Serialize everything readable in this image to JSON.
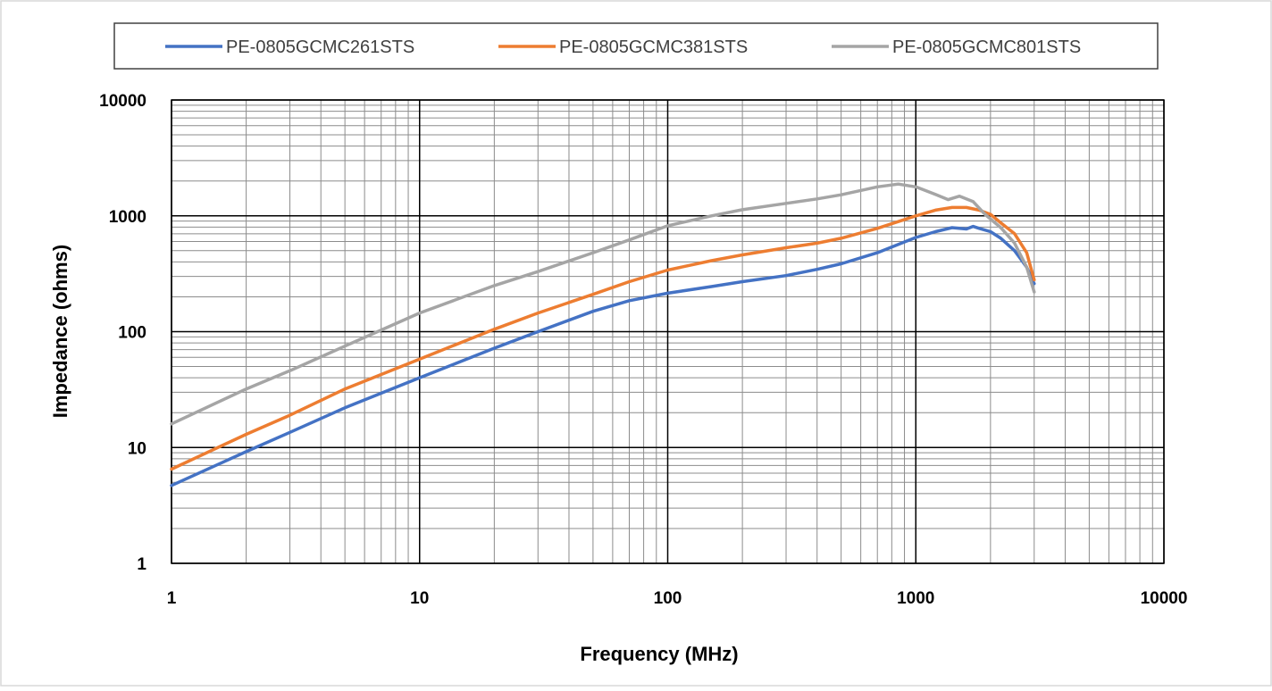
{
  "chart_data": {
    "type": "line",
    "xscale": "log",
    "yscale": "log",
    "xlim": [
      1,
      10000
    ],
    "ylim": [
      1,
      10000
    ],
    "xlabel": "Frequency (MHz)",
    "ylabel": "Impedance (ohms)",
    "x_ticks": [
      "1",
      "10",
      "100",
      "1000",
      "10000"
    ],
    "y_ticks": [
      "1",
      "10",
      "100",
      "1000",
      "10000"
    ],
    "grid": true,
    "legend_position": "top",
    "series": [
      {
        "name": "PE-0805GCMC261STS",
        "color": "#4472C4",
        "points": [
          [
            1,
            4.7
          ],
          [
            2,
            9.2
          ],
          [
            3,
            13.5
          ],
          [
            5,
            22
          ],
          [
            10,
            40
          ],
          [
            20,
            72
          ],
          [
            30,
            100
          ],
          [
            50,
            150
          ],
          [
            70,
            185
          ],
          [
            100,
            215
          ],
          [
            150,
            245
          ],
          [
            200,
            270
          ],
          [
            300,
            305
          ],
          [
            400,
            345
          ],
          [
            500,
            385
          ],
          [
            700,
            480
          ],
          [
            1000,
            650
          ],
          [
            1200,
            730
          ],
          [
            1400,
            790
          ],
          [
            1600,
            770
          ],
          [
            1700,
            810
          ],
          [
            1800,
            780
          ],
          [
            2000,
            730
          ],
          [
            2200,
            640
          ],
          [
            2500,
            500
          ],
          [
            2800,
            360
          ],
          [
            3000,
            260
          ]
        ]
      },
      {
        "name": "PE-0805GCMC381STS",
        "color": "#ED7D31",
        "points": [
          [
            1,
            6.5
          ],
          [
            2,
            13
          ],
          [
            3,
            19
          ],
          [
            5,
            32
          ],
          [
            10,
            58
          ],
          [
            20,
            105
          ],
          [
            30,
            145
          ],
          [
            50,
            210
          ],
          [
            70,
            270
          ],
          [
            100,
            340
          ],
          [
            150,
            410
          ],
          [
            200,
            460
          ],
          [
            300,
            530
          ],
          [
            400,
            580
          ],
          [
            500,
            640
          ],
          [
            700,
            780
          ],
          [
            1000,
            1000
          ],
          [
            1200,
            1120
          ],
          [
            1400,
            1180
          ],
          [
            1600,
            1180
          ],
          [
            1800,
            1120
          ],
          [
            2000,
            1030
          ],
          [
            2200,
            870
          ],
          [
            2500,
            700
          ],
          [
            2800,
            480
          ],
          [
            3000,
            280
          ]
        ]
      },
      {
        "name": "PE-0805GCMC801STS",
        "color": "#A5A5A5",
        "points": [
          [
            1,
            16
          ],
          [
            2,
            32
          ],
          [
            3,
            46
          ],
          [
            5,
            75
          ],
          [
            10,
            145
          ],
          [
            20,
            250
          ],
          [
            30,
            330
          ],
          [
            50,
            480
          ],
          [
            70,
            620
          ],
          [
            100,
            820
          ],
          [
            150,
            1000
          ],
          [
            200,
            1130
          ],
          [
            300,
            1280
          ],
          [
            400,
            1400
          ],
          [
            500,
            1520
          ],
          [
            700,
            1780
          ],
          [
            850,
            1880
          ],
          [
            1000,
            1780
          ],
          [
            1200,
            1530
          ],
          [
            1350,
            1380
          ],
          [
            1500,
            1480
          ],
          [
            1700,
            1330
          ],
          [
            1900,
            1030
          ],
          [
            2200,
            790
          ],
          [
            2500,
            580
          ],
          [
            2800,
            360
          ],
          [
            3000,
            220
          ]
        ]
      }
    ]
  }
}
